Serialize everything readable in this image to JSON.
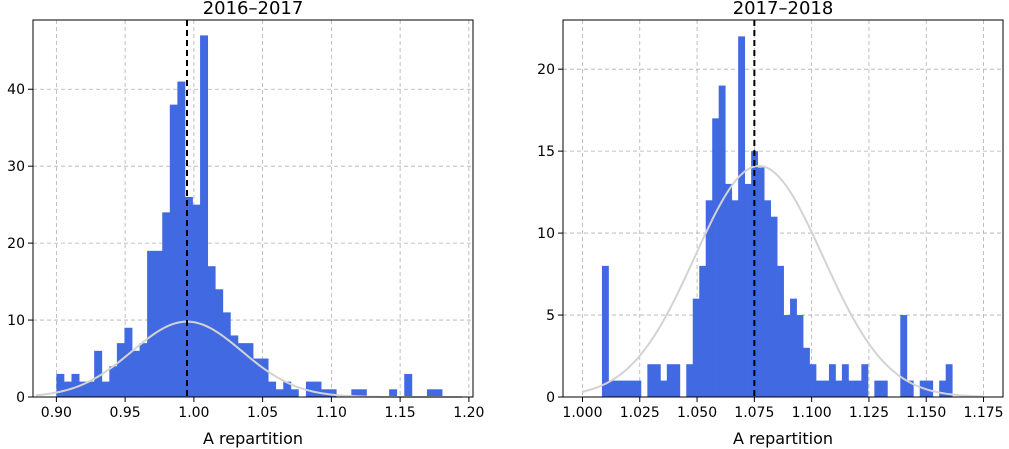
{
  "chart_data": [
    {
      "type": "bar",
      "title": "2016–2017",
      "xlabel": "A repartition",
      "ylabel": "",
      "xlim": [
        0.883,
        1.203
      ],
      "ylim": [
        0,
        49
      ],
      "xticks": [
        0.9,
        0.95,
        1.0,
        1.05,
        1.1,
        1.15,
        1.2
      ],
      "xtick_labels": [
        "0.90",
        "0.95",
        "1.00",
        "1.05",
        "1.10",
        "1.15",
        "1.20"
      ],
      "yticks": [
        0,
        10,
        20,
        30,
        40
      ],
      "ytick_labels": [
        "0",
        "10",
        "20",
        "30",
        "40"
      ],
      "grid": true,
      "bar_color": "#4169e1",
      "bin_start": 0.9,
      "bin_width": 0.0055,
      "values": [
        3,
        2,
        3,
        2,
        2,
        6,
        2,
        4,
        7,
        9,
        6,
        7,
        19,
        19,
        24,
        38,
        41,
        26,
        25,
        47,
        17,
        14,
        11,
        8,
        7,
        7,
        5,
        5,
        2,
        1,
        2,
        1,
        0,
        2,
        2,
        1,
        1,
        0,
        0,
        1,
        1,
        0,
        0,
        0,
        1,
        0,
        3,
        0,
        0,
        1,
        1
      ],
      "reference_x": 0.995,
      "reference_color": "#000000",
      "fit_curve": {
        "mean": 0.995,
        "std": 0.04,
        "peak": 9.8,
        "x_range": [
          0.885,
          1.195
        ],
        "color": "#d3d3d3"
      }
    },
    {
      "type": "bar",
      "title": "2017–2018",
      "xlabel": "A repartition",
      "ylabel": "",
      "xlim": [
        0.9915,
        1.1835
      ],
      "ylim": [
        0,
        23
      ],
      "xticks": [
        1.0,
        1.025,
        1.05,
        1.075,
        1.1,
        1.125,
        1.15,
        1.175
      ],
      "xtick_labels": [
        "1.000",
        "1.025",
        "1.050",
        "1.075",
        "1.100",
        "1.125",
        "1.150",
        "1.175"
      ],
      "yticks": [
        0,
        5,
        10,
        15,
        20
      ],
      "ytick_labels": [
        "0",
        "5",
        "10",
        "15",
        "20"
      ],
      "grid": true,
      "bar_color": "#4169e1",
      "bin_start": 1.0085,
      "bin_width": 0.00283,
      "values": [
        8,
        1,
        1,
        1,
        1,
        1,
        0,
        2,
        2,
        1,
        2,
        2,
        0,
        2,
        6,
        8,
        12,
        17,
        19,
        13,
        12,
        22,
        13,
        15,
        14,
        12,
        11,
        8,
        5,
        6,
        5,
        3,
        2,
        1,
        1,
        2,
        1,
        2,
        1,
        1,
        2,
        0,
        1,
        1,
        0,
        0,
        5,
        1,
        0,
        1,
        1,
        0,
        1,
        2
      ],
      "reference_x": 1.075,
      "reference_color": "#000000",
      "fit_curve": {
        "mean": 1.077,
        "std": 0.028,
        "peak": 14.1,
        "x_range": [
          1.0,
          1.175
        ],
        "color": "#d3d3d3"
      }
    }
  ]
}
